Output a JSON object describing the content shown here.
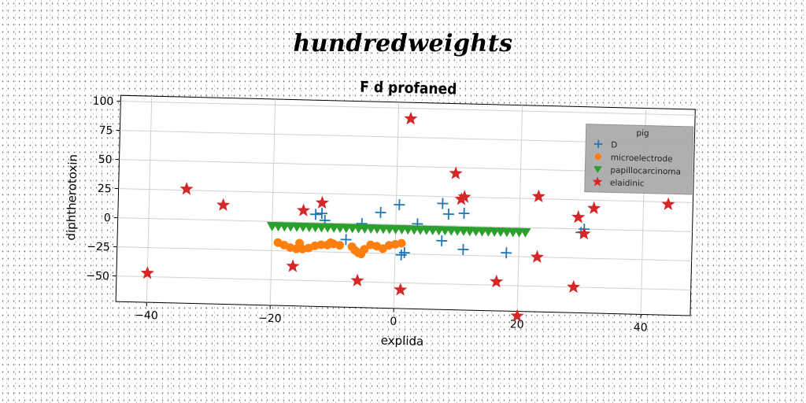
{
  "supertitle": "hundredweights",
  "chart_data": {
    "type": "scatter",
    "title": "F d profaned",
    "xlabel": "explida",
    "ylabel": "diphtherotoxin",
    "xlim": [
      -45,
      48
    ],
    "ylim": [
      -72,
      105
    ],
    "xticks": [
      -40,
      -20,
      0,
      20,
      40
    ],
    "yticks": [
      -50,
      -25,
      0,
      25,
      50,
      75,
      100
    ],
    "grid": true,
    "legend": {
      "title": "pig",
      "placement": "upper-right"
    },
    "series": [
      {
        "name": "D",
        "marker": "plus",
        "color": "#1f77b4",
        "points": [
          [
            -13,
            7
          ],
          [
            -12,
            8
          ],
          [
            -11.5,
            2
          ],
          [
            -8,
            -14
          ],
          [
            -5.5,
            0
          ],
          [
            -2.5,
            10
          ],
          [
            0.5,
            17
          ],
          [
            1,
            -26
          ],
          [
            1.5,
            -24
          ],
          [
            3.5,
            1
          ],
          [
            7.5,
            19
          ],
          [
            8.5,
            10
          ],
          [
            7.5,
            -13
          ],
          [
            11,
            11
          ],
          [
            11,
            -20
          ],
          [
            18,
            -22
          ],
          [
            30,
            -3
          ],
          [
            30.5,
            0
          ]
        ]
      },
      {
        "name": "microelectrode",
        "marker": "circle",
        "color": "#ff7f0e",
        "points": [
          [
            -19,
            -18
          ],
          [
            -18,
            -20
          ],
          [
            -17,
            -22
          ],
          [
            -16,
            -23
          ],
          [
            -15.5,
            -18
          ],
          [
            -15,
            -23
          ],
          [
            -14,
            -22
          ],
          [
            -13,
            -20
          ],
          [
            -12,
            -19
          ],
          [
            -11,
            -19
          ],
          [
            -10.5,
            -17
          ],
          [
            -10,
            -18
          ],
          [
            -9,
            -19
          ],
          [
            -7,
            -20
          ],
          [
            -6.5,
            -23
          ],
          [
            -6,
            -25
          ],
          [
            -5.5,
            -26
          ],
          [
            -5,
            -22
          ],
          [
            -4,
            -18
          ],
          [
            -3,
            -19
          ],
          [
            -2,
            -21
          ],
          [
            -1,
            -18
          ],
          [
            0,
            -17
          ],
          [
            1,
            -16
          ]
        ]
      },
      {
        "name": "papillocarcinoma",
        "marker": "triangle-down",
        "color": "#2ca02c",
        "points": [
          [
            -20,
            -4
          ],
          [
            -19,
            -4
          ],
          [
            -18,
            -4
          ],
          [
            -17,
            -4
          ],
          [
            -16,
            -4
          ],
          [
            -15,
            -4
          ],
          [
            -14,
            -4
          ],
          [
            -13,
            -4
          ],
          [
            -12,
            -4
          ],
          [
            -11,
            -4
          ],
          [
            -10,
            -4
          ],
          [
            -9,
            -4
          ],
          [
            -8,
            -4
          ],
          [
            -7,
            -4
          ],
          [
            -6,
            -4
          ],
          [
            -5,
            -4
          ],
          [
            -4,
            -4
          ],
          [
            -3,
            -4
          ],
          [
            -2,
            -4
          ],
          [
            -1,
            -4
          ],
          [
            0,
            -4
          ],
          [
            1,
            -4
          ],
          [
            2,
            -4
          ],
          [
            3,
            -4
          ],
          [
            4,
            -4
          ],
          [
            5,
            -4
          ],
          [
            6,
            -4
          ],
          [
            7,
            -4
          ],
          [
            8,
            -4
          ],
          [
            9,
            -4
          ],
          [
            10,
            -4
          ],
          [
            11,
            -4
          ],
          [
            12,
            -4
          ],
          [
            13,
            -4
          ],
          [
            14,
            -4
          ],
          [
            15,
            -4
          ],
          [
            16,
            -4
          ],
          [
            17,
            -4
          ],
          [
            18,
            -4
          ],
          [
            19,
            -4
          ],
          [
            20,
            -4
          ],
          [
            21,
            -4
          ]
        ]
      },
      {
        "name": "elaidinic",
        "marker": "star",
        "color": "#d62728",
        "points": [
          [
            -40,
            -47
          ],
          [
            -34,
            26
          ],
          [
            -28,
            13
          ],
          [
            -16.5,
            -38
          ],
          [
            -15,
            10
          ],
          [
            -12,
            17
          ],
          [
            -6,
            -49
          ],
          [
            1,
            -56
          ],
          [
            2,
            91
          ],
          [
            9.5,
            45
          ],
          [
            10.5,
            23
          ],
          [
            11,
            25
          ],
          [
            16.5,
            -47
          ],
          [
            20,
            -76
          ],
          [
            23,
            27
          ],
          [
            23,
            -25
          ],
          [
            29,
            -50
          ],
          [
            29.5,
            10
          ],
          [
            30.5,
            -4
          ],
          [
            32,
            18
          ],
          [
            44,
            23
          ]
        ]
      }
    ]
  }
}
